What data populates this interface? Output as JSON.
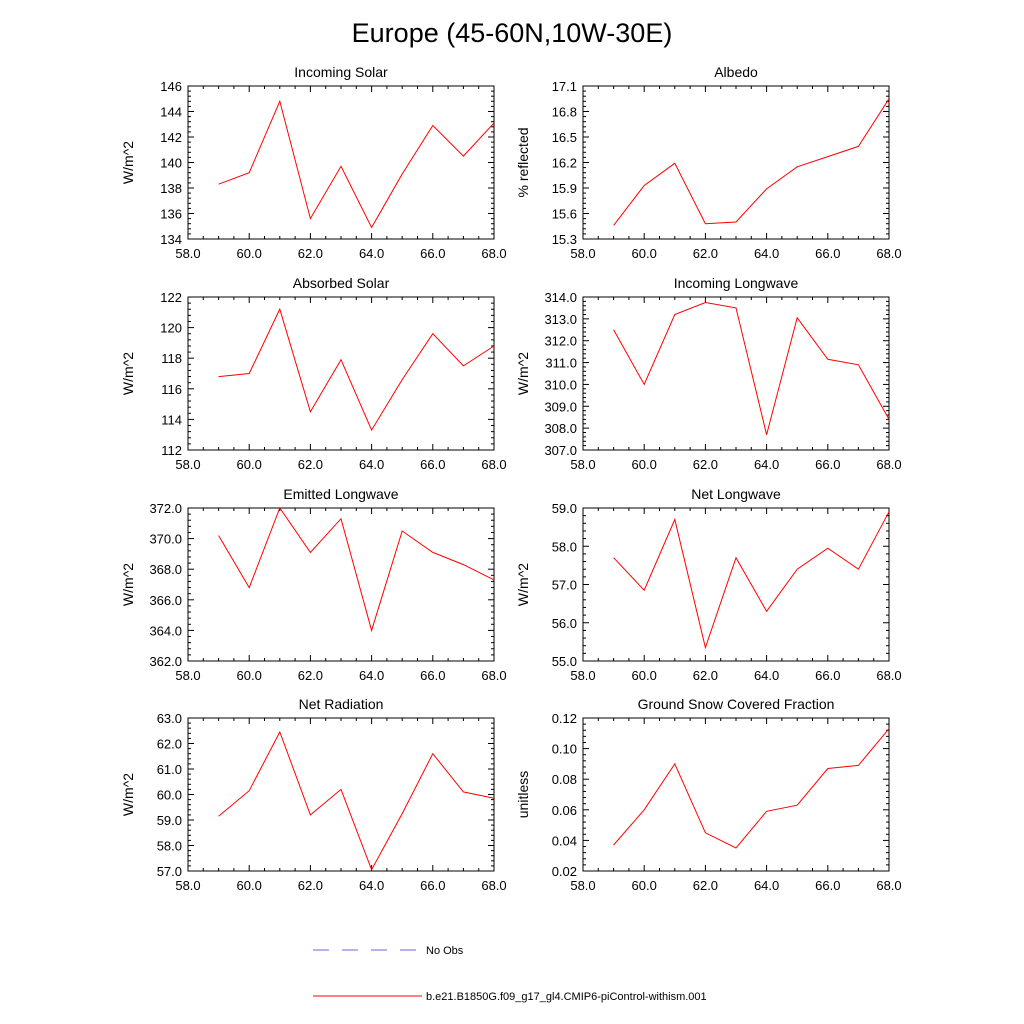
{
  "figure": {
    "title": "Europe (45-60N,10W-30E)",
    "line_color": "#ff0000",
    "obs_color": "#6a6adb",
    "legend": [
      {
        "label": "No Obs",
        "style": "dashed"
      },
      {
        "label": "b.e21.B1850G.f09_g17_gl4.CMIP6-piControl-withism.001",
        "style": "solid"
      }
    ]
  },
  "chart_data": [
    {
      "type": "line",
      "title": "Incoming Solar",
      "ylabel": "W/m^2",
      "xlim": [
        58,
        68
      ],
      "ylim": [
        134,
        146
      ],
      "xticks": [
        "58.0",
        "60.0",
        "62.0",
        "64.0",
        "66.0",
        "68.0"
      ],
      "yticks": [
        "134",
        "136",
        "138",
        "140",
        "142",
        "144",
        "146"
      ],
      "ytick_values": [
        134,
        136,
        138,
        140,
        142,
        144,
        146
      ],
      "x": [
        59,
        60,
        61,
        62,
        63,
        64,
        65,
        66,
        67,
        68
      ],
      "values": [
        138.3,
        139.2,
        144.8,
        135.6,
        139.7,
        134.9,
        139.1,
        142.9,
        140.5,
        143.1
      ]
    },
    {
      "type": "line",
      "title": "Albedo",
      "ylabel": "% reflected",
      "xlim": [
        58,
        68
      ],
      "ylim": [
        15.3,
        17.1
      ],
      "xticks": [
        "58.0",
        "60.0",
        "62.0",
        "64.0",
        "66.0",
        "68.0"
      ],
      "yticks": [
        "15.3",
        "15.6",
        "15.9",
        "16.2",
        "16.5",
        "16.8",
        "17.1"
      ],
      "ytick_values": [
        15.3,
        15.6,
        15.9,
        16.2,
        16.5,
        16.8,
        17.1
      ],
      "x": [
        59,
        60,
        61,
        62,
        63,
        64,
        65,
        66,
        67,
        68
      ],
      "values": [
        15.46,
        15.93,
        16.19,
        15.48,
        15.5,
        15.89,
        16.15,
        16.27,
        16.39,
        16.95
      ]
    },
    {
      "type": "line",
      "title": "Absorbed Solar",
      "ylabel": "W/m^2",
      "xlim": [
        58,
        68
      ],
      "ylim": [
        112,
        122
      ],
      "xticks": [
        "58.0",
        "60.0",
        "62.0",
        "64.0",
        "66.0",
        "68.0"
      ],
      "yticks": [
        "112",
        "114",
        "116",
        "118",
        "120",
        "122"
      ],
      "ytick_values": [
        112,
        114,
        116,
        118,
        120,
        122
      ],
      "x": [
        59,
        60,
        61,
        62,
        63,
        64,
        65,
        66,
        67,
        68
      ],
      "values": [
        116.8,
        117.0,
        121.2,
        114.5,
        117.9,
        113.3,
        116.6,
        119.6,
        117.5,
        118.8
      ]
    },
    {
      "type": "line",
      "title": "Incoming Longwave",
      "ylabel": "W/m^2",
      "xlim": [
        58,
        68
      ],
      "ylim": [
        307.0,
        314.0
      ],
      "xticks": [
        "58.0",
        "60.0",
        "62.0",
        "64.0",
        "66.0",
        "68.0"
      ],
      "yticks": [
        "307.0",
        "308.0",
        "309.0",
        "310.0",
        "311.0",
        "312.0",
        "313.0",
        "314.0"
      ],
      "ytick_values": [
        307,
        308,
        309,
        310,
        311,
        312,
        313,
        314
      ],
      "x": [
        59,
        60,
        61,
        62,
        63,
        64,
        65,
        66,
        67,
        68
      ],
      "values": [
        312.5,
        310.0,
        313.2,
        313.75,
        313.5,
        307.7,
        313.05,
        311.15,
        310.9,
        308.4
      ]
    },
    {
      "type": "line",
      "title": "Emitted Longwave",
      "ylabel": "W/m^2",
      "xlim": [
        58,
        68
      ],
      "ylim": [
        362.0,
        372.0
      ],
      "xticks": [
        "58.0",
        "60.0",
        "62.0",
        "64.0",
        "66.0",
        "68.0"
      ],
      "yticks": [
        "362.0",
        "364.0",
        "366.0",
        "368.0",
        "370.0",
        "372.0"
      ],
      "ytick_values": [
        362,
        364,
        366,
        368,
        370,
        372
      ],
      "x": [
        59,
        60,
        61,
        62,
        63,
        64,
        65,
        66,
        67,
        68
      ],
      "values": [
        370.2,
        366.8,
        372.0,
        369.1,
        371.3,
        364.0,
        370.5,
        369.1,
        368.3,
        367.3
      ]
    },
    {
      "type": "line",
      "title": "Net Longwave",
      "ylabel": "W/m^2",
      "xlim": [
        58,
        68
      ],
      "ylim": [
        55.0,
        59.0
      ],
      "xticks": [
        "58.0",
        "60.0",
        "62.0",
        "64.0",
        "66.0",
        "68.0"
      ],
      "yticks": [
        "55.0",
        "56.0",
        "57.0",
        "58.0",
        "59.0"
      ],
      "ytick_values": [
        55,
        56,
        57,
        58,
        59
      ],
      "x": [
        59,
        60,
        61,
        62,
        63,
        64,
        65,
        66,
        67,
        68
      ],
      "values": [
        57.7,
        56.85,
        58.7,
        55.35,
        57.7,
        56.3,
        57.4,
        57.95,
        57.4,
        58.9
      ]
    },
    {
      "type": "line",
      "title": "Net Radiation",
      "ylabel": "W/m^2",
      "xlim": [
        58,
        68
      ],
      "ylim": [
        57.0,
        63.0
      ],
      "xticks": [
        "58.0",
        "60.0",
        "62.0",
        "64.0",
        "66.0",
        "68.0"
      ],
      "yticks": [
        "57.0",
        "58.0",
        "59.0",
        "60.0",
        "61.0",
        "62.0",
        "63.0"
      ],
      "ytick_values": [
        57,
        58,
        59,
        60,
        61,
        62,
        63
      ],
      "x": [
        59,
        60,
        61,
        62,
        63,
        64,
        65,
        66,
        67,
        68
      ],
      "values": [
        59.15,
        60.15,
        62.45,
        59.2,
        60.2,
        57.05,
        59.25,
        61.6,
        60.1,
        59.85
      ]
    },
    {
      "type": "line",
      "title": "Ground Snow Covered Fraction",
      "ylabel": "unitless",
      "xlim": [
        58,
        68
      ],
      "ylim": [
        0.02,
        0.12
      ],
      "xticks": [
        "58.0",
        "60.0",
        "62.0",
        "64.0",
        "66.0",
        "68.0"
      ],
      "yticks": [
        "0.02",
        "0.04",
        "0.06",
        "0.08",
        "0.10",
        "0.12"
      ],
      "ytick_values": [
        0.02,
        0.04,
        0.06,
        0.08,
        0.1,
        0.12
      ],
      "x": [
        59,
        60,
        61,
        62,
        63,
        64,
        65,
        66,
        67,
        68
      ],
      "values": [
        0.037,
        0.06,
        0.09,
        0.045,
        0.035,
        0.059,
        0.063,
        0.087,
        0.089,
        0.113
      ]
    }
  ]
}
